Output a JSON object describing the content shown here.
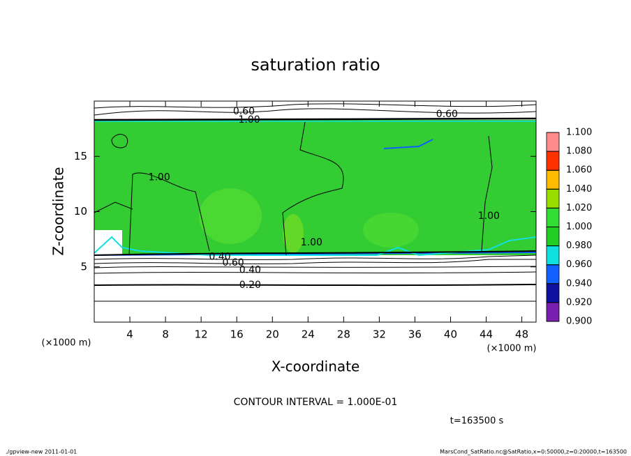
{
  "chart_data": {
    "type": "contour",
    "title": "saturation ratio",
    "x_label": "X-coordinate",
    "y_label": "Z-coordinate",
    "x_unit_left": "(×1000 m)",
    "x_unit_right": "(×1000 m)",
    "xlim": [
      0,
      49.6
    ],
    "ylim": [
      0,
      20
    ],
    "xticks": [
      4,
      8,
      12,
      16,
      20,
      24,
      28,
      32,
      36,
      40,
      44,
      48
    ],
    "yticks": [
      5,
      10,
      15
    ],
    "colorbar": {
      "levels": [
        {
          "value": 0.9,
          "label": "0.900"
        },
        {
          "value": 0.92,
          "label": "0.920"
        },
        {
          "value": 0.94,
          "label": "0.940"
        },
        {
          "value": 0.96,
          "label": "0.960"
        },
        {
          "value": 0.98,
          "label": "0.980"
        },
        {
          "value": 1.0,
          "label": "1.000"
        },
        {
          "value": 1.02,
          "label": "1.020"
        },
        {
          "value": 1.04,
          "label": "1.040"
        },
        {
          "value": 1.06,
          "label": "1.060"
        },
        {
          "value": 1.08,
          "label": "1.080"
        },
        {
          "value": 1.1,
          "label": "1.100"
        }
      ],
      "colors": [
        "#7a1fb0",
        "#1010a0",
        "#1060ff",
        "#10e0e0",
        "#22cc22",
        "#33dd33",
        "#99dd00",
        "#ffbb00",
        "#ff3300",
        "#ff8c8c"
      ]
    },
    "contour_labels": [
      {
        "value": 0.6,
        "label": "0.60",
        "x": 16.8,
        "z": 19.05
      },
      {
        "value": 1.0,
        "label": "1.00",
        "x": 17.4,
        "z": 18.3
      },
      {
        "value": 0.6,
        "label": "0.60",
        "x": 39.6,
        "z": 18.8
      },
      {
        "value": 1.0,
        "label": "1.00",
        "x": 7.3,
        "z": 13.1
      },
      {
        "value": 1.0,
        "label": "1.00",
        "x": 24.4,
        "z": 7.2
      },
      {
        "value": 1.0,
        "label": "1.00",
        "x": 44.3,
        "z": 9.6
      },
      {
        "value": 0.4,
        "label": "0.40",
        "x": 14.1,
        "z": 5.9
      },
      {
        "value": 0.6,
        "label": "0.60",
        "x": 15.6,
        "z": 5.35
      },
      {
        "value": 0.4,
        "label": "0.40",
        "x": 17.5,
        "z": 4.7
      },
      {
        "value": 0.2,
        "label": "0.20",
        "x": 17.5,
        "z": 3.35
      }
    ],
    "contour_interval": "CONTOUR INTERVAL = 1.000E-01",
    "time_label": "t=163500 s",
    "footer_left": "./gpview-new   2011-01-01",
    "footer_right": "MarsCond_SatRatio.nc@SatRatio,x=0:50000,z=0:20000,t=163500"
  }
}
